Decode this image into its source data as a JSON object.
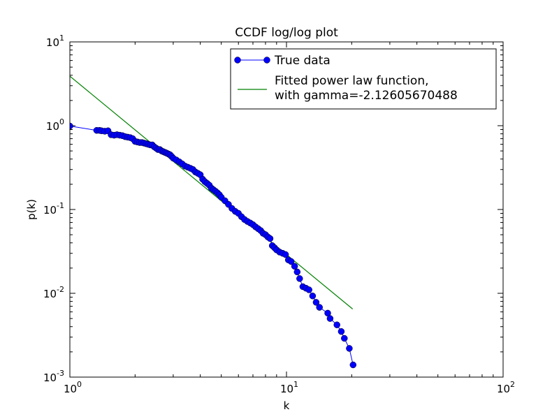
{
  "chart_data": {
    "type": "line",
    "title": "CCDF log/log plot",
    "xlabel": "k",
    "ylabel": "p(k)",
    "xscale": "log",
    "yscale": "log",
    "xlim": [
      1,
      100
    ],
    "ylim": [
      0.001,
      10
    ],
    "grid": false,
    "legend_position": "top-right",
    "x_ticks": [
      {
        "base": "10",
        "exp": "0"
      },
      {
        "base": "10",
        "exp": "1"
      },
      {
        "base": "10",
        "exp": "2"
      }
    ],
    "y_ticks": [
      {
        "base": "10",
        "exp": "-3"
      },
      {
        "base": "10",
        "exp": "-2"
      },
      {
        "base": "10",
        "exp": "-1"
      },
      {
        "base": "10",
        "exp": "0"
      },
      {
        "base": "10",
        "exp": "1"
      }
    ],
    "series": [
      {
        "name": "True data",
        "style": "line-marker",
        "color": "#0000ff",
        "x": [
          1.0,
          1.33,
          1.37,
          1.4,
          1.45,
          1.5,
          1.55,
          1.6,
          1.65,
          1.7,
          1.75,
          1.8,
          1.85,
          1.9,
          1.95,
          2.0,
          2.05,
          2.1,
          2.15,
          2.2,
          2.25,
          2.3,
          2.35,
          2.4,
          2.45,
          2.5,
          2.55,
          2.6,
          2.65,
          2.7,
          2.75,
          2.8,
          2.85,
          2.9,
          2.95,
          3.0,
          3.1,
          3.2,
          3.3,
          3.4,
          3.5,
          3.6,
          3.7,
          3.8,
          3.9,
          4.0,
          4.1,
          4.2,
          4.3,
          4.4,
          4.5,
          4.6,
          4.7,
          4.8,
          4.9,
          5.0,
          5.2,
          5.4,
          5.6,
          5.8,
          6.0,
          6.2,
          6.4,
          6.6,
          6.8,
          7.0,
          7.2,
          7.4,
          7.6,
          7.8,
          8.0,
          8.2,
          8.4,
          8.6,
          8.8,
          9.0,
          9.3,
          9.6,
          9.9,
          10.2,
          10.5,
          10.9,
          11.2,
          11.5,
          11.9,
          12.3,
          12.7,
          13.2,
          13.7,
          14.2,
          15.5,
          15.9,
          17.1,
          17.9,
          18.5,
          19.5,
          20.3
        ],
        "y": [
          0.99,
          0.88,
          0.88,
          0.87,
          0.86,
          0.87,
          0.78,
          0.77,
          0.78,
          0.77,
          0.76,
          0.74,
          0.73,
          0.72,
          0.7,
          0.65,
          0.64,
          0.63,
          0.63,
          0.62,
          0.61,
          0.6,
          0.59,
          0.59,
          0.56,
          0.54,
          0.52,
          0.52,
          0.5,
          0.49,
          0.48,
          0.47,
          0.46,
          0.45,
          0.43,
          0.41,
          0.39,
          0.37,
          0.35,
          0.33,
          0.32,
          0.31,
          0.3,
          0.28,
          0.27,
          0.26,
          0.23,
          0.215,
          0.205,
          0.195,
          0.18,
          0.172,
          0.165,
          0.158,
          0.15,
          0.14,
          0.127,
          0.115,
          0.103,
          0.095,
          0.09,
          0.082,
          0.076,
          0.072,
          0.069,
          0.066,
          0.062,
          0.059,
          0.056,
          0.052,
          0.05,
          0.047,
          0.045,
          0.037,
          0.035,
          0.033,
          0.031,
          0.03,
          0.029,
          0.025,
          0.024,
          0.021,
          0.018,
          0.015,
          0.012,
          0.0115,
          0.011,
          0.0093,
          0.0078,
          0.0068,
          0.0058,
          0.005,
          0.0042,
          0.0035,
          0.0029,
          0.0022,
          0.0014
        ]
      },
      {
        "name": "Fitted power law function,\nwith gamma=-2.12605670488",
        "style": "line",
        "color": "#008000",
        "x": [
          1.0,
          20.2
        ],
        "y": [
          3.9,
          0.0065
        ]
      }
    ]
  }
}
